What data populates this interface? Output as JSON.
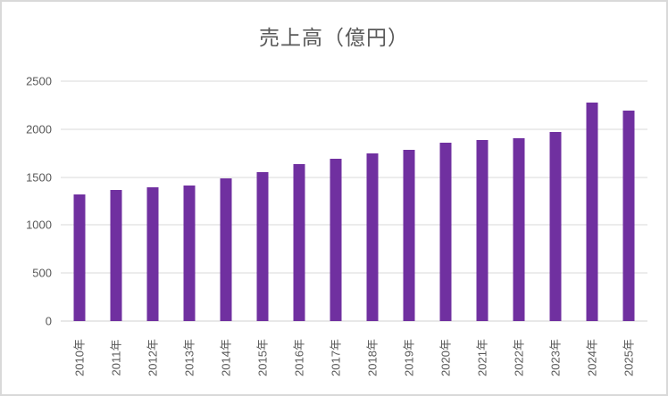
{
  "chart_data": {
    "type": "bar",
    "title": "売上高（億円）",
    "categories": [
      "2010年",
      "2011年",
      "2012年",
      "2013年",
      "2014年",
      "2015年",
      "2016年",
      "2017年",
      "2018年",
      "2019年",
      "2020年",
      "2021年",
      "2022年",
      "2023年",
      "2024年",
      "2025年"
    ],
    "values": [
      1320,
      1370,
      1390,
      1410,
      1490,
      1550,
      1640,
      1695,
      1750,
      1785,
      1860,
      1890,
      1905,
      1975,
      2280,
      2190
    ],
    "xlabel": "",
    "ylabel": "",
    "ylim": [
      0,
      2500
    ],
    "yticks": [
      0,
      500,
      1000,
      1500,
      2000,
      2500
    ],
    "grid": true,
    "legend_position": "none",
    "bar_color": "#7030A0",
    "gridline_color": "#D9D9D9",
    "axis_line_color": "#D2D2D2",
    "axis_text_color": "#595959",
    "title_color": "#595959",
    "border_color": "#D9D9D9",
    "background_color": "#FFFFFF"
  }
}
